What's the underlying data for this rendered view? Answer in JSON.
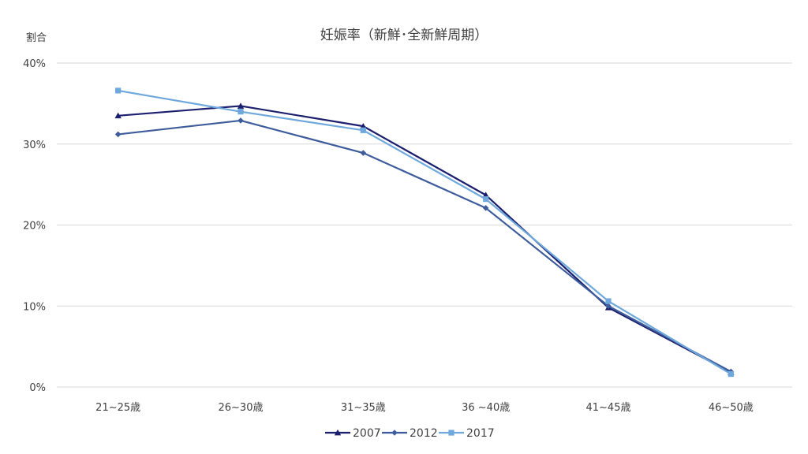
{
  "chart_data": {
    "type": "line",
    "title": "妊娠率（新鮮･全新鮮周期）",
    "ylabel": "割合",
    "xlabel": "",
    "categories": [
      "21~25歳",
      "26~30歳",
      "31~35歳",
      "36 ~40歳",
      "41~45歳",
      "46~50歳"
    ],
    "ylim": [
      0,
      40
    ],
    "yticks": [
      0,
      10,
      20,
      30,
      40
    ],
    "ytick_labels": [
      "0%",
      "10%",
      "20%",
      "30%",
      "40%"
    ],
    "grid": true,
    "legend_position": "bottom",
    "series": [
      {
        "name": "2007",
        "color": "#1b1f6e",
        "marker": "triangle",
        "values": [
          33.5,
          34.7,
          32.2,
          23.7,
          9.8,
          1.8
        ]
      },
      {
        "name": "2012",
        "color": "#3e5c9c",
        "marker": "diamond",
        "values": [
          31.2,
          32.9,
          28.9,
          22.1,
          10.0,
          1.9
        ]
      },
      {
        "name": "2017",
        "color": "#6fa8dc",
        "marker": "square",
        "values": [
          36.6,
          34.0,
          31.7,
          23.2,
          10.6,
          1.6
        ]
      }
    ]
  }
}
